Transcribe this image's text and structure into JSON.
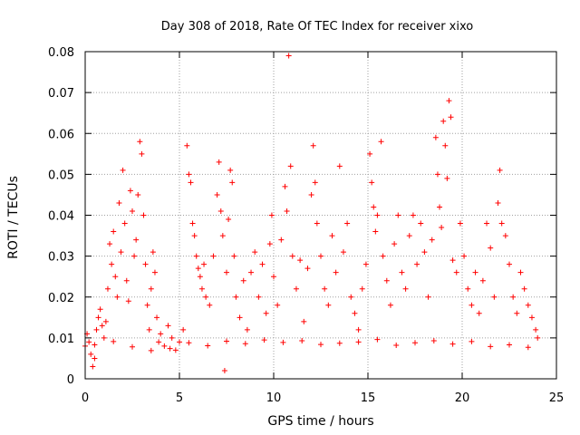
{
  "chart_data": {
    "type": "scatter",
    "title": "Day 308 of 2018, Rate Of TEC Index for receiver xixo",
    "xlabel": "GPS time / hours",
    "ylabel": "ROTI / TECUs",
    "xlim": [
      0,
      25
    ],
    "ylim": [
      0,
      0.08
    ],
    "x_ticks": [
      0,
      5,
      10,
      15,
      20,
      25
    ],
    "x_tick_labels": [
      "0",
      "5",
      "10",
      "15",
      "20",
      "25"
    ],
    "y_ticks": [
      0,
      0.01,
      0.02,
      0.03,
      0.04,
      0.05,
      0.06,
      0.07,
      0.08
    ],
    "y_tick_labels": [
      "0",
      "0.01",
      "0.02",
      "0.03",
      "0.04",
      "0.05",
      "0.06",
      "0.07",
      "0.08"
    ],
    "grid": true,
    "marker": "plus",
    "marker_color": "#ff0000",
    "series": [
      {
        "points": [
          [
            0.0,
            0.008
          ],
          [
            0.1,
            0.011
          ],
          [
            0.2,
            0.009
          ],
          [
            0.3,
            0.006
          ],
          [
            0.4,
            0.003
          ],
          [
            0.5,
            0.005
          ],
          [
            0.6,
            0.012
          ],
          [
            0.7,
            0.015
          ],
          [
            0.8,
            0.017
          ],
          [
            0.9,
            0.013
          ],
          [
            1.0,
            0.01
          ],
          [
            1.1,
            0.014
          ],
          [
            1.2,
            0.022
          ],
          [
            1.3,
            0.033
          ],
          [
            1.4,
            0.028
          ],
          [
            1.5,
            0.036
          ],
          [
            1.6,
            0.025
          ],
          [
            1.7,
            0.02
          ],
          [
            1.8,
            0.043
          ],
          [
            1.9,
            0.031
          ],
          [
            2.0,
            0.051
          ],
          [
            2.1,
            0.038
          ],
          [
            2.2,
            0.024
          ],
          [
            2.3,
            0.019
          ],
          [
            2.4,
            0.046
          ],
          [
            2.5,
            0.041
          ],
          [
            2.6,
            0.03
          ],
          [
            2.7,
            0.034
          ],
          [
            2.8,
            0.045
          ],
          [
            2.9,
            0.058
          ],
          [
            3.0,
            0.055
          ],
          [
            3.1,
            0.04
          ],
          [
            3.2,
            0.028
          ],
          [
            3.3,
            0.018
          ],
          [
            3.4,
            0.012
          ],
          [
            3.5,
            0.022
          ],
          [
            3.6,
            0.031
          ],
          [
            3.7,
            0.026
          ],
          [
            3.8,
            0.015
          ],
          [
            3.9,
            0.009
          ],
          [
            4.0,
            0.011
          ],
          [
            4.2,
            0.008
          ],
          [
            4.4,
            0.013
          ],
          [
            4.6,
            0.01
          ],
          [
            4.8,
            0.007
          ],
          [
            5.0,
            0.009
          ],
          [
            5.2,
            0.012
          ],
          [
            5.4,
            0.057
          ],
          [
            5.5,
            0.05
          ],
          [
            5.6,
            0.048
          ],
          [
            5.7,
            0.038
          ],
          [
            5.8,
            0.035
          ],
          [
            5.9,
            0.03
          ],
          [
            6.0,
            0.027
          ],
          [
            6.1,
            0.025
          ],
          [
            6.2,
            0.022
          ],
          [
            6.3,
            0.028
          ],
          [
            6.4,
            0.02
          ],
          [
            6.6,
            0.018
          ],
          [
            6.8,
            0.03
          ],
          [
            7.0,
            0.045
          ],
          [
            7.1,
            0.053
          ],
          [
            7.2,
            0.041
          ],
          [
            7.3,
            0.035
          ],
          [
            7.4,
            0.002
          ],
          [
            7.5,
            0.026
          ],
          [
            7.6,
            0.039
          ],
          [
            7.7,
            0.051
          ],
          [
            7.8,
            0.048
          ],
          [
            7.9,
            0.03
          ],
          [
            8.0,
            0.02
          ],
          [
            8.2,
            0.015
          ],
          [
            8.4,
            0.024
          ],
          [
            8.6,
            0.012
          ],
          [
            8.8,
            0.026
          ],
          [
            9.0,
            0.031
          ],
          [
            9.2,
            0.02
          ],
          [
            9.4,
            0.028
          ],
          [
            9.6,
            0.016
          ],
          [
            9.8,
            0.033
          ],
          [
            9.9,
            0.04
          ],
          [
            10.0,
            0.025
          ],
          [
            10.2,
            0.018
          ],
          [
            10.4,
            0.034
          ],
          [
            10.6,
            0.047
          ],
          [
            10.7,
            0.041
          ],
          [
            10.8,
            0.079
          ],
          [
            10.9,
            0.052
          ],
          [
            11.0,
            0.03
          ],
          [
            11.2,
            0.022
          ],
          [
            11.4,
            0.029
          ],
          [
            11.6,
            0.014
          ],
          [
            11.8,
            0.027
          ],
          [
            12.0,
            0.045
          ],
          [
            12.1,
            0.057
          ],
          [
            12.2,
            0.048
          ],
          [
            12.3,
            0.038
          ],
          [
            12.5,
            0.03
          ],
          [
            12.7,
            0.022
          ],
          [
            12.9,
            0.018
          ],
          [
            13.1,
            0.035
          ],
          [
            13.3,
            0.026
          ],
          [
            13.5,
            0.052
          ],
          [
            13.7,
            0.031
          ],
          [
            13.9,
            0.038
          ],
          [
            14.1,
            0.02
          ],
          [
            14.3,
            0.016
          ],
          [
            14.5,
            0.012
          ],
          [
            14.7,
            0.022
          ],
          [
            14.9,
            0.028
          ],
          [
            15.1,
            0.055
          ],
          [
            15.2,
            0.048
          ],
          [
            15.3,
            0.042
          ],
          [
            15.4,
            0.036
          ],
          [
            15.5,
            0.04
          ],
          [
            15.7,
            0.058
          ],
          [
            15.8,
            0.03
          ],
          [
            16.0,
            0.024
          ],
          [
            16.2,
            0.018
          ],
          [
            16.4,
            0.033
          ],
          [
            16.6,
            0.04
          ],
          [
            16.8,
            0.026
          ],
          [
            17.0,
            0.022
          ],
          [
            17.2,
            0.035
          ],
          [
            17.4,
            0.04
          ],
          [
            17.6,
            0.028
          ],
          [
            17.8,
            0.038
          ],
          [
            18.0,
            0.031
          ],
          [
            18.2,
            0.02
          ],
          [
            18.4,
            0.034
          ],
          [
            18.6,
            0.059
          ],
          [
            18.7,
            0.05
          ],
          [
            18.8,
            0.042
          ],
          [
            18.9,
            0.037
          ],
          [
            19.0,
            0.063
          ],
          [
            19.1,
            0.057
          ],
          [
            19.2,
            0.049
          ],
          [
            19.3,
            0.068
          ],
          [
            19.4,
            0.064
          ],
          [
            19.5,
            0.029
          ],
          [
            19.7,
            0.026
          ],
          [
            19.9,
            0.038
          ],
          [
            20.1,
            0.03
          ],
          [
            20.3,
            0.022
          ],
          [
            20.5,
            0.018
          ],
          [
            20.7,
            0.026
          ],
          [
            20.9,
            0.016
          ],
          [
            21.1,
            0.024
          ],
          [
            21.3,
            0.038
          ],
          [
            21.5,
            0.032
          ],
          [
            21.7,
            0.02
          ],
          [
            21.9,
            0.043
          ],
          [
            22.0,
            0.051
          ],
          [
            22.1,
            0.038
          ],
          [
            22.3,
            0.035
          ],
          [
            22.5,
            0.028
          ],
          [
            22.7,
            0.02
          ],
          [
            22.9,
            0.016
          ],
          [
            23.1,
            0.026
          ],
          [
            23.3,
            0.022
          ],
          [
            23.5,
            0.018
          ],
          [
            23.7,
            0.015
          ],
          [
            23.9,
            0.012
          ],
          [
            24.0,
            0.01
          ],
          [
            0.5,
            0.0083
          ],
          [
            1.5,
            0.0091
          ],
          [
            2.5,
            0.0078
          ],
          [
            3.5,
            0.0069
          ],
          [
            4.5,
            0.0074
          ],
          [
            5.5,
            0.0088
          ],
          [
            6.5,
            0.0081
          ],
          [
            7.5,
            0.0092
          ],
          [
            8.5,
            0.0086
          ],
          [
            9.5,
            0.0095
          ],
          [
            10.5,
            0.0089
          ],
          [
            11.5,
            0.0093
          ],
          [
            12.5,
            0.0084
          ],
          [
            13.5,
            0.0087
          ],
          [
            14.5,
            0.009
          ],
          [
            15.5,
            0.0096
          ],
          [
            16.5,
            0.0082
          ],
          [
            17.5,
            0.0088
          ],
          [
            18.5,
            0.0093
          ],
          [
            19.5,
            0.0085
          ],
          [
            20.5,
            0.0091
          ],
          [
            21.5,
            0.0079
          ],
          [
            22.5,
            0.0083
          ],
          [
            23.5,
            0.0077
          ]
        ]
      }
    ]
  }
}
